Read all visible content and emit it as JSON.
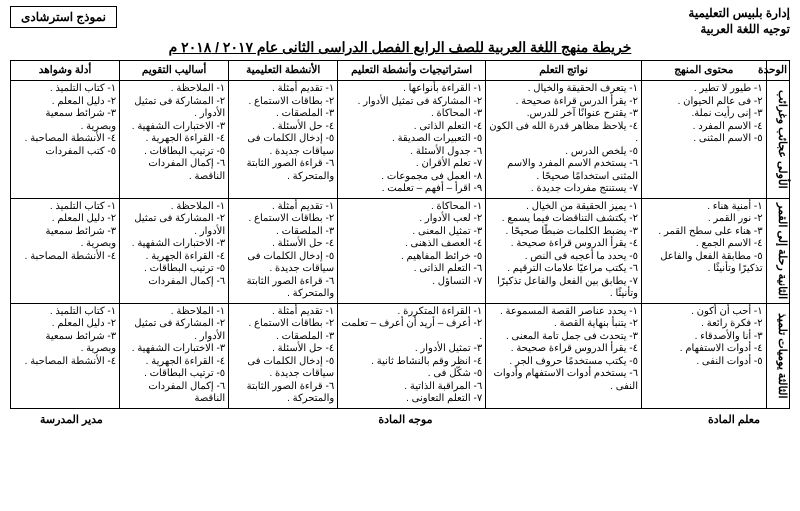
{
  "header": {
    "admin": "إدارة بلبيس التعليمية",
    "dept": "توجيه اللغة العربية",
    "model_label": "نموذج استرشادى"
  },
  "title": "خريطة منهج اللغة العربية للصف الرابع الفصل الدراسى الثانى عام ٢٠١٧ / ٢٠١٨ م",
  "columns": [
    "الوحدة",
    "محتوى المنهج",
    "نواتج التعلم",
    "استراتيجيات وأنشطة التعليم",
    "الأنشطة التعليمية",
    "أساليب التقويم",
    "أدلة وشواهد"
  ],
  "col_widths": [
    "3%",
    "16%",
    "20%",
    "19%",
    "14%",
    "14%",
    "14%"
  ],
  "units": [
    {
      "name": "الأولى\nعجائب وغرائب",
      "content": [
        "١- طيور لا تطير .",
        "٢- فى عالم الحيوان .",
        "٣- إنى رأيت نملة.",
        "٤- الاسم المفرد .",
        "٥- الاسم المثنى ."
      ],
      "outcomes": [
        "١- يتعرف الحقيقة والخيال .",
        "٢- يقرأ الدرس قراءة صحيحة .",
        "٣- يقترح عنوانًا آخر للدرس.",
        "٤- يلاحظ مظاهر قدرة الله فى الكون .",
        "٥- يلخص الدرس .",
        "٦- يستخدم الاسم المفرد والاسم المثنى استخدامًا صحيحًا .",
        "٧- يستنتج مفردات جديدة ."
      ],
      "strategies": [
        "١- القراءة بأنواعها .",
        "٢- المشاركة فى تمثيل الأدوار .",
        "٣- المحاكاة .",
        "٤- التعلم الذاتى .",
        "٥- التعبيرات الصديقة .",
        "٦- جدول الأسئلة .",
        "٧- تعلم الأقران .",
        "٨- العمل فى مجموعات .",
        "٩- اقرأ – أفهم – تعلمت ."
      ],
      "activities": [
        "١- تقديم أمثلة .",
        "٢- بطاقات الاستماع .",
        "٣- الملصقات .",
        "٤- حل الأسئلة .",
        "٥- إدخال الكلمات فى سياقات جديدة .",
        "٦- قراءة الصور الثابتة والمتحركة ."
      ],
      "evaluation": [
        "١- الملاحظة .",
        "٢- المشاركة فى تمثيل الأدوار .",
        "٣- الاختبارات الشفهية .",
        "٤- القراءة الجهرية .",
        "٥- ترتيب البطاقات .",
        "٦- إكمال المفردات الناقصة ."
      ],
      "evidence": [
        "١- كتاب التلميذ .",
        "٢- دليل المعلم .",
        "٣- شرائط سمعية وبصرية .",
        "٤- الأنشطة المصاحبة .",
        "٥- كتب المفردات"
      ]
    },
    {
      "name": "الثانية\nرحلة إلى القمر",
      "content": [
        "١- أمنية هناء .",
        "٢- نور القمر .",
        "٣- هناء على سطح القمر .",
        "٤- الاسم الجمع .",
        "٥- مطابقة الفعل والفاعل تذكيرًا وتأنيثًا ."
      ],
      "outcomes": [
        "١- يميز الحقيقة من الخيال .",
        "٢- يكتشف التناقضات فيما يسمع .",
        "٣- يضبط الكلمات ضبطًا صحيحًا .",
        "٤- يقرأ الدروس قراءة صحيحة .",
        "٥- يحدد ما أعجبه فى النص .",
        "٦- يكتب مراعيًا علامات الترقيم .",
        "٧- يطابق بين الفعل والفاعل تذكيرًا وتأنيثًا ."
      ],
      "strategies": [
        "١- المحاكاة .",
        "٢- لعب الأدوار .",
        "٣- تمثيل المعنى .",
        "٤- العصف الذهنى .",
        "٥- خرائط المفاهيم .",
        "٦- التعلم الذاتى .",
        "٧- التساؤل ."
      ],
      "activities": [
        "١- تقديم أمثلة .",
        "٢- بطاقات الاستماع .",
        "٣- الملصقات .",
        "٤- حل الأسئلة .",
        "٥- إدخال الكلمات فى سياقات جديدة .",
        "٦- قراءة الصور الثابتة والمتحركة ."
      ],
      "evaluation": [
        "١- الملاحظة .",
        "٢- المشاركة فى تمثيل الأدوار .",
        "٣- الاختبارات الشفهية .",
        "٤- القراءة الجهرية .",
        "٥- ترتيب البطاقات .",
        "٦- إكمال المفردات"
      ],
      "evidence": [
        "١- كتاب التلميذ .",
        "٢- دليل المعلم .",
        "٣- شرائط سمعية وبصرية .",
        "٤- الأنشطة المصاحبة ."
      ]
    },
    {
      "name": "الثالثة\nيوميات تلميذ",
      "content": [
        "١- أحب أن أكون .",
        "٢- فكرة رائعة .",
        "٣- أنا والأصدقاء .",
        "٤- أدوات الاستفهام .",
        "٥- أدوات النفى ."
      ],
      "outcomes": [
        "١- يحدد عناصر القصة المسموعة .",
        "٢- يتنبأ بنهاية القصة .",
        "٣- يتحدث فى جمل تامة المعنى .",
        "٤- يقرأ الدروس قراءة صحيحة .",
        "٥- يكتب مستخدمًا حروف الجر .",
        "٦- يستخدم أدوات الاستفهام وأدوات النفى ."
      ],
      "strategies": [
        "١- القراءة المتكررة .",
        "٢- أعرف – أريد أن أعرف – تعلمت .",
        "٣- تمثيل الأدوار .",
        "٤- انظر وقم بالنشاط ثانية .",
        "٥- شكّل فى .",
        "٦- المراقبة الذاتية .",
        "٧- التعلم التعاونى ."
      ],
      "activities": [
        "١- تقديم أمثلة .",
        "٢- بطاقات الاستماع .",
        "٣- الملصقات .",
        "٤- حل الأسئلة .",
        "٥- إدخال الكلمات فى سياقات جديدة .",
        "٦- قراءة الصور الثابتة والمتحركة ."
      ],
      "evaluation": [
        "١- الملاحظة .",
        "٢- المشاركة فى تمثيل الأدوار .",
        "٣- الاختبارات الشفهية .",
        "٤- القراءة الجهرية .",
        "٥- ترتيب البطاقات .",
        "٦- إكمال المفردات الناقصة"
      ],
      "evidence": [
        "١- كتاب التلميذ .",
        "٢- دليل المعلم .",
        "٣- شرائط سمعية وبصرية .",
        "٤- الأنشطة المصاحبة ."
      ]
    }
  ],
  "signatures": {
    "teacher": "معلم المادة",
    "supervisor": "موجه المادة",
    "principal": "مدير المدرسة"
  }
}
